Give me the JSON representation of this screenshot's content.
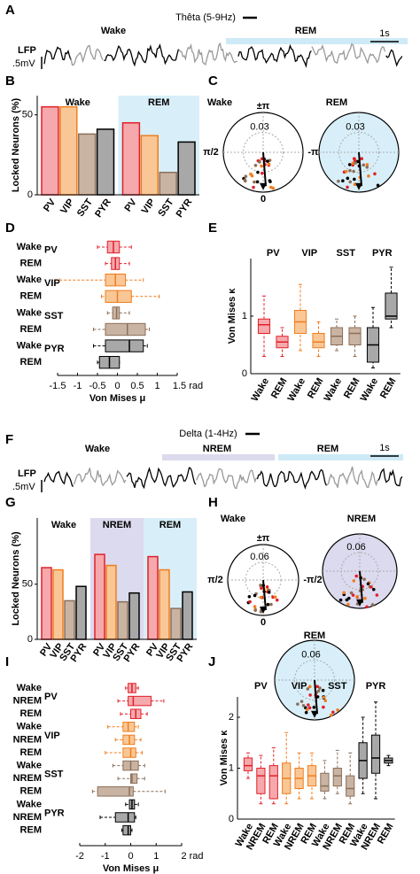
{
  "panels": [
    "A",
    "B",
    "C",
    "D",
    "E",
    "F",
    "G",
    "H",
    "I",
    "J"
  ],
  "chart_data": [
    {
      "type": "trace",
      "title": "Thêta (5-9Hz)",
      "signal_label": "LFP",
      "scale_amp": ".5mV",
      "scale_time": "1s",
      "states": [
        {
          "name": "Wake",
          "color": "#000000"
        },
        {
          "name": "REM",
          "color": "#19a3d9",
          "band": "#cdeaf6"
        }
      ]
    },
    {
      "type": "bar",
      "ylabel": "Locked Neurons (%)",
      "ylim": [
        0,
        62
      ],
      "yticks": [
        0,
        50
      ],
      "categories": [
        "PV",
        "VIP",
        "SST",
        "PYR"
      ],
      "colors": [
        "#e0202a",
        "#f07d1e",
        "#8c6f58",
        "#000000"
      ],
      "fills": [
        "#f6a9ac",
        "#f9c796",
        "#c9b4a3",
        "#a8a8a8"
      ],
      "groups": [
        {
          "name": "Wake",
          "color": "#000000",
          "values": [
            55,
            55,
            38,
            41
          ]
        },
        {
          "name": "REM",
          "color": "#19a3d9",
          "background": "#d8eff9",
          "values": [
            45,
            37,
            14,
            33
          ]
        }
      ]
    },
    {
      "type": "polar",
      "angle_labels": [
        "±π",
        "π/2",
        "-π/2",
        "0"
      ],
      "panels": [
        {
          "name": "Wake",
          "color": "#000000",
          "background": "#ffffff",
          "radius_label": 0.03
        },
        {
          "name": "REM",
          "color": "#19a3d9",
          "background": "#d8eff9",
          "radius_label": 0.03
        }
      ]
    },
    {
      "type": "box",
      "orientation": "horizontal",
      "xlabel": "Von Mises μ",
      "xlim": [
        -1.5,
        1.5
      ],
      "xticks": [
        -1.5,
        -1,
        -0.5,
        0,
        0.5,
        1,
        {
          "value": 1.5,
          "label": "1.5 rad"
        }
      ],
      "groups": [
        {
          "name": "PV",
          "color": "#e0202a",
          "fill": "#f6a9ac",
          "boxes": [
            {
              "name": "Wake",
              "label_color": "#000000",
              "stats": [
                -0.5,
                -0.25,
                -0.1,
                0.05,
                0.35
              ]
            },
            {
              "name": "REM",
              "label_color": "#19a3d9",
              "stats": [
                -0.3,
                -0.15,
                -0.05,
                0.05,
                0.3
              ]
            }
          ]
        },
        {
          "name": "VIP",
          "color": "#f07d1e",
          "fill": "#f9c796",
          "boxes": [
            {
              "name": "Wake",
              "label_color": "#000000",
              "stats": [
                -1.45,
                -0.3,
                -0.05,
                0.2,
                0.65
              ]
            },
            {
              "name": "REM",
              "label_color": "#19a3d9",
              "stats": [
                -0.4,
                -0.3,
                0,
                0.35,
                1.05
              ]
            }
          ]
        },
        {
          "name": "SST",
          "color": "#8c6f58",
          "fill": "#c9b4a3",
          "boxes": [
            {
              "name": "Wake",
              "label_color": "#000000",
              "stats": [
                -0.25,
                -0.12,
                -0.02,
                0.05,
                0.3
              ]
            },
            {
              "name": "REM",
              "label_color": "#19a3d9",
              "stats": [
                -0.6,
                -0.3,
                0.25,
                0.7,
                0.8
              ]
            }
          ]
        },
        {
          "name": "PYR",
          "color": "#000000",
          "fill": "#a8a8a8",
          "boxes": [
            {
              "name": "Wake",
              "label_color": "#000000",
              "stats": [
                -0.6,
                -0.3,
                0.3,
                0.65,
                0.75
              ]
            },
            {
              "name": "REM",
              "label_color": "#19a3d9",
              "stats": [
                -0.5,
                -0.45,
                -0.2,
                0.05,
                0.05
              ]
            }
          ]
        }
      ]
    },
    {
      "type": "box",
      "orientation": "vertical",
      "ylabel": "Von Mises κ",
      "ylim": [
        0,
        2
      ],
      "yticks": [
        0,
        1
      ],
      "groups": [
        {
          "name": "PV",
          "color": "#e0202a",
          "fill": "#f6a9ac",
          "boxes": [
            {
              "name": "Wake",
              "label_color": "#000000",
              "stats": [
                0.3,
                0.7,
                0.85,
                0.95,
                1.35
              ]
            },
            {
              "name": "REM",
              "label_color": "#19a3d9",
              "stats": [
                0.3,
                0.45,
                0.55,
                0.65,
                0.8
              ]
            }
          ]
        },
        {
          "name": "VIP",
          "color": "#f07d1e",
          "fill": "#f9c796",
          "boxes": [
            {
              "name": "Wake",
              "label_color": "#000000",
              "stats": [
                0.4,
                0.7,
                0.9,
                1.1,
                1.55
              ]
            },
            {
              "name": "REM",
              "label_color": "#19a3d9",
              "stats": [
                0.3,
                0.45,
                0.55,
                0.7,
                0.9
              ]
            }
          ]
        },
        {
          "name": "SST",
          "color": "#8c6f58",
          "fill": "#c9b4a3",
          "boxes": [
            {
              "name": "Wake",
              "label_color": "#000000",
              "stats": [
                0.4,
                0.5,
                0.65,
                0.8,
                0.95
              ]
            },
            {
              "name": "REM",
              "label_color": "#19a3d9",
              "stats": [
                0.3,
                0.5,
                0.7,
                0.8,
                1.0
              ]
            }
          ]
        },
        {
          "name": "PYR",
          "color": "#000000",
          "fill": "#a8a8a8",
          "boxes": [
            {
              "name": "Wake",
              "label_color": "#000000",
              "stats": [
                0.1,
                0.2,
                0.5,
                0.8,
                1.15
              ]
            },
            {
              "name": "REM",
              "label_color": "#19a3d9",
              "stats": [
                0.8,
                0.95,
                1.0,
                1.4,
                1.85
              ]
            }
          ]
        }
      ]
    },
    {
      "type": "trace",
      "title": "Delta (1-4Hz)",
      "signal_label": "LFP",
      "scale_amp": ".5mV",
      "scale_time": "1s",
      "states": [
        {
          "name": "Wake",
          "color": "#000000"
        },
        {
          "name": "NREM",
          "color": "#2d2b87",
          "band": "#dcdaee"
        },
        {
          "name": "REM",
          "color": "#19a3d9",
          "band": "#cdeaf6"
        }
      ]
    },
    {
      "type": "bar",
      "ylabel": "Locked Neurons (%)",
      "ylim": [
        0,
        110
      ],
      "yticks": [
        0,
        50
      ],
      "categories": [
        "PV",
        "VIP",
        "SST",
        "PYR"
      ],
      "colors": [
        "#e0202a",
        "#f07d1e",
        "#8c6f58",
        "#000000"
      ],
      "fills": [
        "#f6a9ac",
        "#f9c796",
        "#c9b4a3",
        "#a8a8a8"
      ],
      "groups": [
        {
          "name": "Wake",
          "color": "#000000",
          "values": [
            65,
            63,
            35,
            48
          ]
        },
        {
          "name": "NREM",
          "color": "#2d2b87",
          "background": "#dcdaee",
          "values": [
            77,
            67,
            34,
            42
          ]
        },
        {
          "name": "REM",
          "color": "#19a3d9",
          "background": "#d8eff9",
          "values": [
            75,
            63,
            28,
            43
          ]
        }
      ]
    },
    {
      "type": "polar",
      "angle_labels": [
        "±π",
        "π/2",
        "-π/2",
        "0"
      ],
      "panels": [
        {
          "name": "Wake",
          "color": "#000000",
          "background": "#ffffff",
          "radius_label": 0.06
        },
        {
          "name": "NREM",
          "color": "#2d2b87",
          "background": "#dcdaee",
          "radius_label": 0.06
        },
        {
          "name": "REM",
          "color": "#19a3d9",
          "background": "#d8eff9",
          "radius_label": 0.06
        }
      ]
    },
    {
      "type": "box",
      "orientation": "horizontal",
      "xlabel": "Von Mises μ",
      "xlim": [
        -2,
        2
      ],
      "xticks": [
        -2,
        -1,
        0,
        1,
        {
          "value": 2,
          "label": "2 rad"
        }
      ],
      "groups": [
        {
          "name": "PV",
          "color": "#e0202a",
          "fill": "#f6a9ac",
          "boxes": [
            {
              "name": "Wake",
              "label_color": "#000000",
              "stats": [
                -0.2,
                -0.1,
                0.05,
                0.2,
                0.3
              ]
            },
            {
              "name": "NREM",
              "label_color": "#2d2b87",
              "stats": [
                -0.5,
                -0.1,
                0.1,
                0.8,
                1.3
              ]
            },
            {
              "name": "REM",
              "label_color": "#19a3d9",
              "stats": [
                -0.4,
                0,
                0.2,
                0.4,
                0.65
              ]
            }
          ]
        },
        {
          "name": "VIP",
          "color": "#f07d1e",
          "fill": "#f9c796",
          "boxes": [
            {
              "name": "Wake",
              "label_color": "#000000",
              "stats": [
                -0.9,
                -0.3,
                -0.1,
                0.15,
                0.3
              ]
            },
            {
              "name": "NREM",
              "label_color": "#2d2b87",
              "stats": [
                -0.6,
                -0.3,
                -0.05,
                0.15,
                0.4
              ]
            },
            {
              "name": "REM",
              "label_color": "#19a3d9",
              "stats": [
                -1.0,
                -0.3,
                0,
                0.2,
                0.45
              ]
            }
          ]
        },
        {
          "name": "SST",
          "color": "#8c6f58",
          "fill": "#c9b4a3",
          "boxes": [
            {
              "name": "Wake",
              "label_color": "#000000",
              "stats": [
                -0.7,
                -0.3,
                0,
                0.3,
                0.55
              ]
            },
            {
              "name": "NREM",
              "label_color": "#2d2b87",
              "stats": [
                -0.5,
                0,
                0.05,
                0.25,
                0.55
              ]
            },
            {
              "name": "REM",
              "label_color": "#19a3d9",
              "stats": [
                -1.5,
                -1.3,
                -0.05,
                0.1,
                1.35
              ]
            }
          ]
        },
        {
          "name": "PYR",
          "color": "#000000",
          "fill": "#a8a8a8",
          "boxes": [
            {
              "name": "Wake",
              "label_color": "#000000",
              "stats": [
                -0.2,
                -0.05,
                0.05,
                0.15,
                0.3
              ]
            },
            {
              "name": "NREM",
              "label_color": "#2d2b87",
              "stats": [
                -1.2,
                -0.6,
                -0.1,
                0.15,
                0.2
              ]
            },
            {
              "name": "REM",
              "label_color": "#19a3d9",
              "stats": [
                -0.35,
                -0.3,
                -0.1,
                0,
                0.05
              ]
            }
          ]
        }
      ]
    },
    {
      "type": "box",
      "orientation": "vertical",
      "ylabel": "Von Mises κ",
      "ylim": [
        0,
        2.4
      ],
      "yticks": [
        0,
        1,
        2
      ],
      "groups": [
        {
          "name": "PV",
          "color": "#e0202a",
          "fill": "#f6a9ac",
          "boxes": [
            {
              "name": "Wake",
              "label_color": "#000000",
              "stats": [
                0.8,
                0.95,
                1.05,
                1.2,
                1.3
              ]
            },
            {
              "name": "NREM",
              "label_color": "#2d2b87",
              "stats": [
                0.3,
                0.5,
                0.85,
                1.0,
                1.25
              ]
            },
            {
              "name": "REM",
              "label_color": "#19a3d9",
              "stats": [
                0.3,
                0.4,
                0.85,
                1.05,
                1.4
              ]
            }
          ]
        },
        {
          "name": "VIP",
          "color": "#f07d1e",
          "fill": "#f9c796",
          "boxes": [
            {
              "name": "Wake",
              "label_color": "#000000",
              "stats": [
                0.3,
                0.5,
                0.8,
                1.1,
                1.7
              ]
            },
            {
              "name": "NREM",
              "label_color": "#2d2b87",
              "stats": [
                0.4,
                0.6,
                0.8,
                1.0,
                1.3
              ]
            },
            {
              "name": "REM",
              "label_color": "#19a3d9",
              "stats": [
                0.4,
                0.65,
                0.85,
                1.05,
                1.3
              ]
            }
          ]
        },
        {
          "name": "SST",
          "color": "#8c6f58",
          "fill": "#c9b4a3",
          "boxes": [
            {
              "name": "Wake",
              "label_color": "#000000",
              "stats": [
                0.4,
                0.55,
                0.65,
                0.9,
                1.15
              ]
            },
            {
              "name": "NREM",
              "label_color": "#2d2b87",
              "stats": [
                0.5,
                0.65,
                0.85,
                1.0,
                1.35
              ]
            },
            {
              "name": "REM",
              "label_color": "#19a3d9",
              "stats": [
                0.3,
                0.45,
                0.6,
                0.85,
                1.3
              ]
            }
          ]
        },
        {
          "name": "PYR",
          "color": "#000000",
          "fill": "#a8a8a8",
          "boxes": [
            {
              "name": "Wake",
              "label_color": "#000000",
              "stats": [
                0.5,
                0.8,
                1.15,
                1.5,
                2.0
              ]
            },
            {
              "name": "NREM",
              "label_color": "#2d2b87",
              "stats": [
                0.4,
                0.9,
                1.2,
                1.65,
                2.3
              ]
            },
            {
              "name": "REM",
              "label_color": "#19a3d9",
              "stats": [
                1.05,
                1.1,
                1.15,
                1.2,
                1.25
              ]
            }
          ]
        }
      ]
    }
  ]
}
